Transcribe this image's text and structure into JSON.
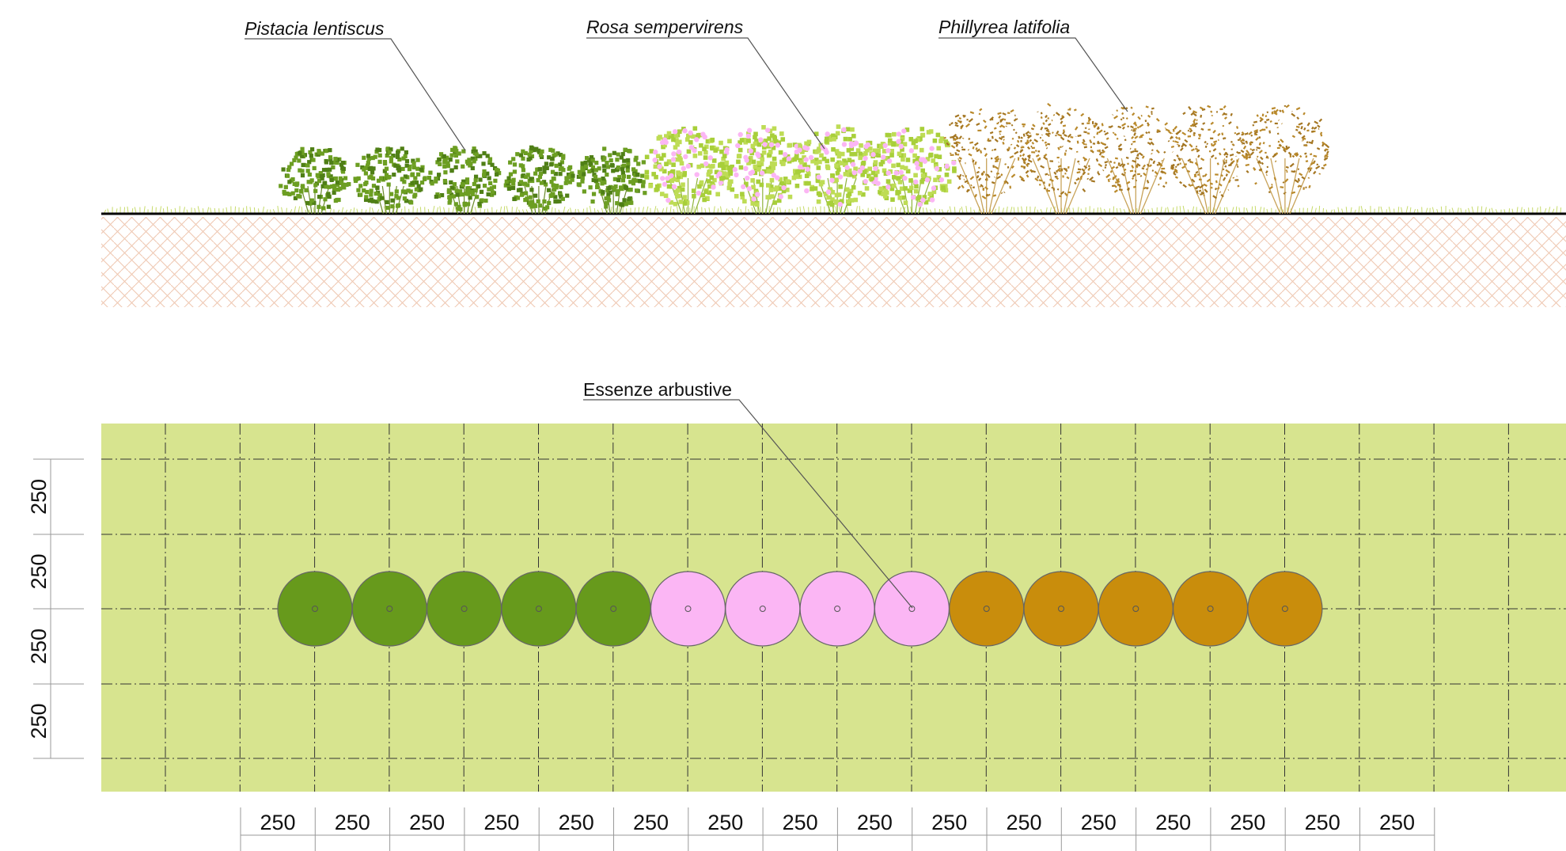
{
  "labels": {
    "pistacia": "Pistacia lentiscus",
    "rosa": "Rosa sempervirens",
    "phillyrea": "Phillyrea latifolia",
    "essenze": "Essenze arbustive"
  },
  "spacing_label": "250",
  "columns": 16,
  "rows": 4,
  "plants": [
    {
      "species": "pistacia",
      "count": 5
    },
    {
      "species": "rosa",
      "count": 4
    },
    {
      "species": "phillyrea",
      "count": 5
    }
  ],
  "colors": {
    "pistacia": "#679a1c",
    "rosa": "#fbb6f4",
    "phillyrea": "#c98d0c",
    "rosa_foliage": "#a8cf3a",
    "phillyrea_foliage": "#b9892b",
    "plan_background": "#d7e48f",
    "soil_pattern": "#efc8b2",
    "grass": "#c7db6b"
  }
}
